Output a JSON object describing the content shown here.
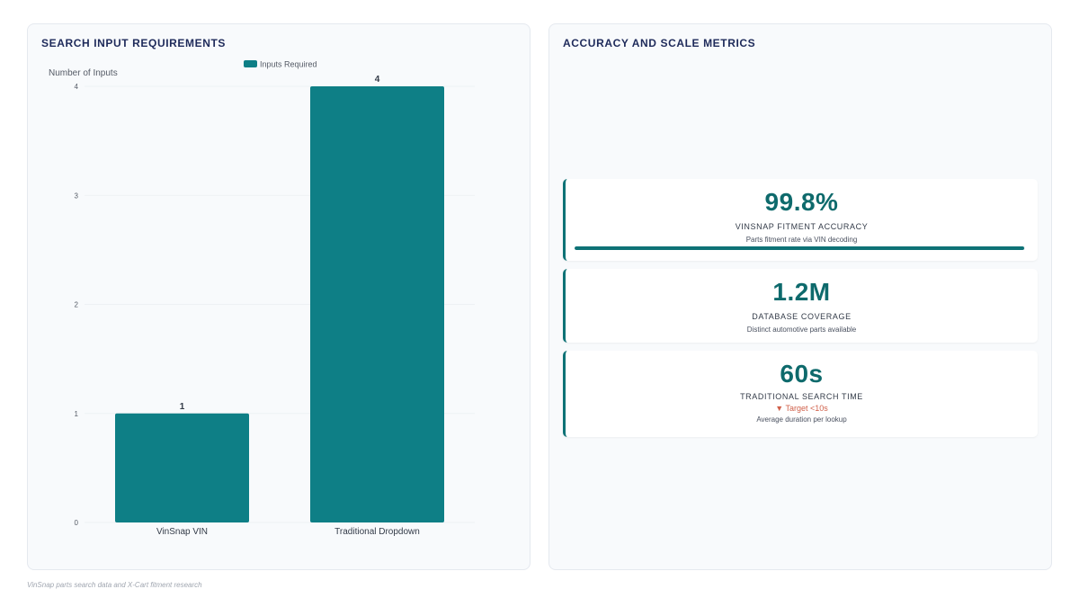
{
  "left_panel": {
    "title": "SEARCH INPUT REQUIREMENTS"
  },
  "right_panel": {
    "title": "ACCURACY AND SCALE METRICS",
    "metrics": [
      {
        "value": "99.8%",
        "label": "VINSNAP FITMENT ACCURACY",
        "description": "Parts fitment rate via VIN decoding",
        "progress": 0.998
      },
      {
        "value": "1.2M",
        "label": "DATABASE COVERAGE",
        "description": "Distinct automotive parts available"
      },
      {
        "value": "60s",
        "label": "TRADITIONAL SEARCH TIME",
        "target": "▼ Target <10s",
        "description": "Average duration per lookup"
      }
    ]
  },
  "footer": "VinSnap parts search data and X-Cart fitment research",
  "colors": {
    "accent": "#0e7f86",
    "target": "#d0604a"
  },
  "chart_data": {
    "type": "bar",
    "categories": [
      "VinSnap VIN",
      "Traditional Dropdown"
    ],
    "series": [
      {
        "name": "Inputs Required",
        "values": [
          1,
          4
        ],
        "color": "#0e7f86"
      }
    ],
    "ylabel": "Number of Inputs",
    "xlabel": "",
    "ylim": [
      0,
      4
    ],
    "yticks": [
      0,
      1,
      2,
      3,
      4
    ],
    "legend_position": "top",
    "grid": false
  }
}
